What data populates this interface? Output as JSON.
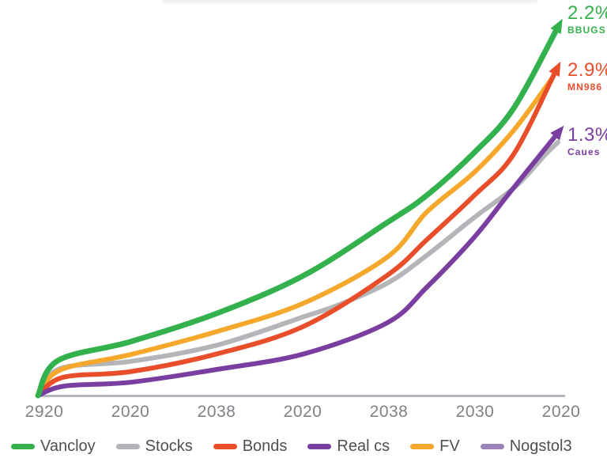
{
  "chart_data": {
    "type": "line",
    "title": "",
    "x_labels": [
      "2920",
      "2020",
      "2038",
      "2020",
      "2038",
      "2030",
      "2020"
    ],
    "axis_color": "#a5abb3",
    "x_tick_color": "#7e8286",
    "y_axis": {
      "visible": false,
      "scale": "unlabeled growth index, normalized 0-100"
    },
    "series": [
      {
        "name": "Stocks",
        "color": "#b3b5b8",
        "width": 6,
        "arrow": false,
        "points": [
          [
            0,
            0
          ],
          [
            0.042,
            7.1
          ],
          [
            0.177,
            9.0
          ],
          [
            0.343,
            13.3
          ],
          [
            0.509,
            20.8
          ],
          [
            0.577,
            24.0
          ],
          [
            0.668,
            29.6
          ],
          [
            0.743,
            36.9
          ],
          [
            0.834,
            46.9
          ],
          [
            0.914,
            55.2
          ],
          [
            0.97,
            63.5
          ],
          [
            0.994,
            66.7
          ]
        ]
      },
      {
        "name": "FV",
        "color": "#f5a82c",
        "width": 6,
        "arrow": false,
        "points": [
          [
            0,
            0
          ],
          [
            0.042,
            6.7
          ],
          [
            0.177,
            10.8
          ],
          [
            0.343,
            16.9
          ],
          [
            0.509,
            24.4
          ],
          [
            0.668,
            36.5
          ],
          [
            0.743,
            48.3
          ],
          [
            0.834,
            58.8
          ],
          [
            0.909,
            69.8
          ],
          [
            0.985,
            84.0
          ]
        ]
      },
      {
        "name": "Bonds",
        "color": "#e94e2b",
        "width": 6,
        "arrow": true,
        "end_label": {
          "value": "2.9%",
          "caption": "MN986"
        },
        "points": [
          [
            0,
            0
          ],
          [
            0.048,
            4.8
          ],
          [
            0.177,
            6.3
          ],
          [
            0.343,
            11.0
          ],
          [
            0.509,
            18.3
          ],
          [
            0.668,
            31.7
          ],
          [
            0.743,
            41.0
          ],
          [
            0.834,
            52.7
          ],
          [
            0.909,
            63.5
          ],
          [
            0.988,
            85.0
          ]
        ]
      },
      {
        "name": "Real cs",
        "color": "#7a3da0",
        "width": 6,
        "arrow": true,
        "end_label": {
          "value": "1.3%",
          "caption": "Caues"
        },
        "points": [
          [
            0,
            0
          ],
          [
            0.051,
            2.5
          ],
          [
            0.177,
            3.5
          ],
          [
            0.343,
            6.9
          ],
          [
            0.509,
            11.0
          ],
          [
            0.668,
            19.2
          ],
          [
            0.743,
            28.5
          ],
          [
            0.834,
            41.7
          ],
          [
            0.902,
            53.5
          ],
          [
            0.99,
            68.5
          ]
        ]
      },
      {
        "name": "Vancloy",
        "color": "#33b14d",
        "width": 7,
        "arrow": true,
        "end_label": {
          "value": "2.2%",
          "caption": "BBUGS"
        },
        "points": [
          [
            0,
            0
          ],
          [
            0.038,
            9.2
          ],
          [
            0.177,
            14.2
          ],
          [
            0.343,
            21.7
          ],
          [
            0.509,
            31.7
          ],
          [
            0.668,
            45.6
          ],
          [
            0.743,
            52.7
          ],
          [
            0.834,
            64.0
          ],
          [
            0.909,
            75.6
          ],
          [
            0.991,
            96.3
          ]
        ]
      }
    ],
    "legend": {
      "position": "bottom",
      "items": [
        {
          "label": "Vancloy",
          "color": "#33b14d"
        },
        {
          "label": "Stocks",
          "color": "#b3b5b8"
        },
        {
          "label": "Bonds",
          "color": "#e94e2b"
        },
        {
          "label": "Real cs",
          "color": "#7a3da0"
        },
        {
          "label": "FV",
          "color": "#f5a82c"
        },
        {
          "label": "Nogstol3",
          "color": "#9b82b8"
        }
      ]
    }
  }
}
